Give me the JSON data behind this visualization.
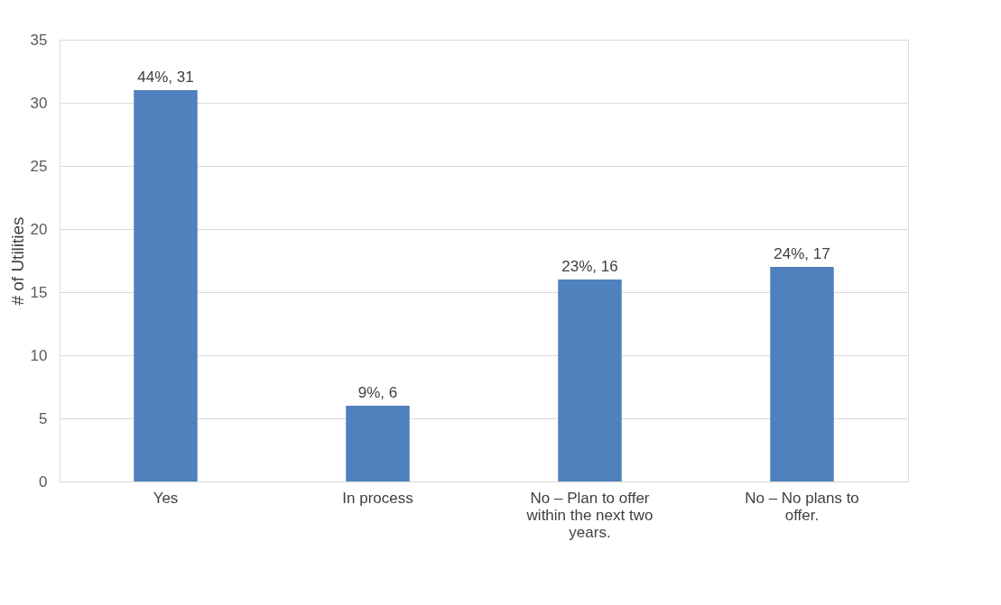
{
  "chart_data": {
    "type": "bar",
    "ylabel": "# of Utilities",
    "categories": [
      "Yes",
      "In process",
      "No – Plan to offer within the next two years.",
      "No – No plans to offer."
    ],
    "values": [
      31,
      6,
      16,
      17
    ],
    "value_labels": [
      "44%, 31",
      "9%, 6",
      "23%, 16",
      "24%, 17"
    ],
    "color": "#4f81bd",
    "ylim": [
      0,
      35
    ],
    "yticks": [
      0,
      5,
      10,
      15,
      20,
      25,
      30,
      35
    ],
    "grid": "y"
  }
}
